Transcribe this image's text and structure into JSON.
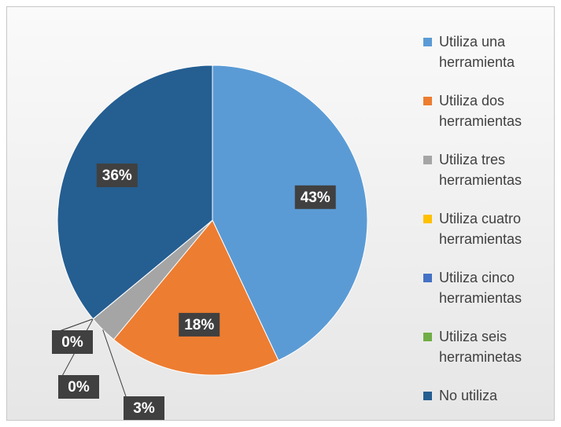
{
  "chart_data": {
    "type": "pie",
    "categories": [
      "Utiliza una herramienta",
      "Utiliza dos herramientas",
      "Utiliza tres herramientas",
      "Utiliza cuatro herramientas",
      "Utiliza cinco herramientas",
      "Utiliza seis herraminetas",
      "No utiliza"
    ],
    "values": [
      43,
      18,
      3,
      0,
      0,
      0,
      36
    ],
    "value_labels": [
      "43%",
      "18%",
      "3%",
      "0%",
      "0%",
      "0%",
      "36%"
    ],
    "colors": [
      "#5b9bd5",
      "#ed7d31",
      "#a5a5a5",
      "#ffc000",
      "#4472c4",
      "#70ad47",
      "#255e91"
    ],
    "legend": "right"
  }
}
